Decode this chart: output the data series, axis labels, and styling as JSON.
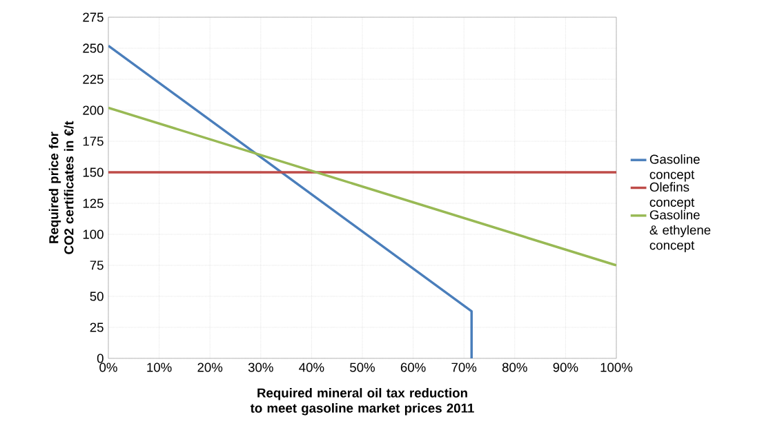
{
  "chart_data": {
    "type": "line",
    "xlabel": "Required mineral oil tax reduction to meet gasoline market prices 2011",
    "ylabel": "Required price for CO2 certificates in €/t",
    "series": [
      {
        "name": "Gasoline concept",
        "color": "#4a7ebb",
        "x": [
          0,
          71.5,
          71.5
        ],
        "values": [
          252,
          38,
          0
        ]
      },
      {
        "name": "Olefins concept",
        "color": "#be4b48",
        "x": [
          0,
          100
        ],
        "values": [
          150,
          150
        ]
      },
      {
        "name": "Gasoline & ethylene concept",
        "color": "#98b954",
        "x": [
          0,
          100
        ],
        "values": [
          202,
          75
        ]
      }
    ],
    "xlim": [
      0,
      100
    ],
    "xticks": [
      {
        "value": 0,
        "label": "0%"
      },
      {
        "value": 10,
        "label": "10%"
      },
      {
        "value": 20,
        "label": "20%"
      },
      {
        "value": 30,
        "label": "30%"
      },
      {
        "value": 40,
        "label": "40%"
      },
      {
        "value": 50,
        "label": "50%"
      },
      {
        "value": 60,
        "label": "60%"
      },
      {
        "value": 70,
        "label": "70%"
      },
      {
        "value": 80,
        "label": "80%"
      },
      {
        "value": 90,
        "label": "90%"
      },
      {
        "value": 100,
        "label": "100%"
      }
    ],
    "ylim": [
      0,
      275
    ],
    "yticks": [
      0,
      25,
      50,
      75,
      100,
      125,
      150,
      175,
      200,
      225,
      250,
      275
    ],
    "grid": true,
    "legend": "right",
    "marker": "none",
    "line_style": "solid"
  }
}
